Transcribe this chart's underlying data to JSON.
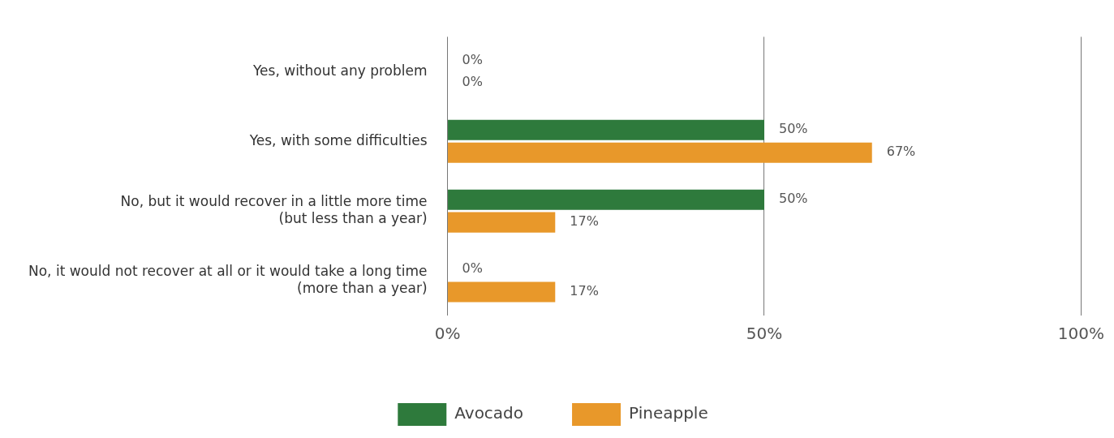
{
  "chart_data": {
    "type": "bar",
    "orientation": "horizontal",
    "categories": [
      "Yes, without any problem",
      "Yes, with some difficulties",
      "No, but it would recover in a little more time\n(but less than a year)",
      "No, it would not recover at all or it would take a long time\n(more than a year)"
    ],
    "series": [
      {
        "name": "Avocado",
        "color": "#2e7a3c",
        "values": [
          0,
          50,
          50,
          0
        ],
        "value_labels": [
          "0%",
          "50%",
          "50%",
          "0%"
        ]
      },
      {
        "name": "Pineapple",
        "color": "#e8982a",
        "values": [
          0,
          67,
          17,
          17
        ],
        "value_labels": [
          "0%",
          "67%",
          "17%",
          "17%"
        ]
      }
    ],
    "xlim": [
      0,
      100
    ],
    "xticks": [
      {
        "value": 0,
        "label": "0%"
      },
      {
        "value": 50,
        "label": "50%"
      },
      {
        "value": 100,
        "label": "100%"
      }
    ],
    "grid": "x",
    "legend": "bottom"
  }
}
